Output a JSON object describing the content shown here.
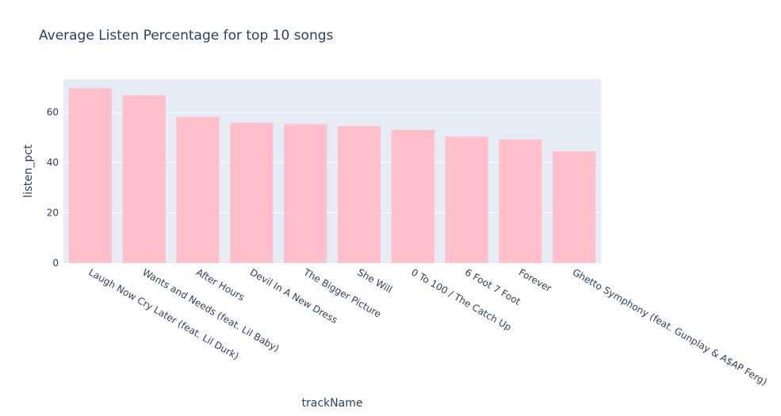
{
  "chart_data": {
    "type": "bar",
    "title": "Average Listen Percentage for top 10 songs",
    "xlabel": "trackName",
    "ylabel": "listen_pct",
    "categories": [
      "Laugh Now Cry Later (feat. Lil Durk)",
      "Wants and Needs (feat. Lil Baby)",
      "After Hours",
      "Devil In A New Dress",
      "The Bigger Picture",
      "She Will",
      "0 To 100 / The Catch Up",
      "6 Foot 7 Foot",
      "Forever",
      "Ghetto Symphony (feat. Gunplay & A$AP Ferg)"
    ],
    "values": [
      69.5,
      66.7,
      58.2,
      55.8,
      55.3,
      54.5,
      53.0,
      50.3,
      49.2,
      44.4
    ],
    "ylim": [
      0,
      73.1
    ],
    "yticks": [
      0,
      20,
      40,
      60
    ],
    "grid": true,
    "colors": {
      "bar": "#ffc0cb",
      "plot_bg": "#e5ecf6",
      "grid": "#ffffff",
      "text": "#2a3f5f"
    }
  }
}
